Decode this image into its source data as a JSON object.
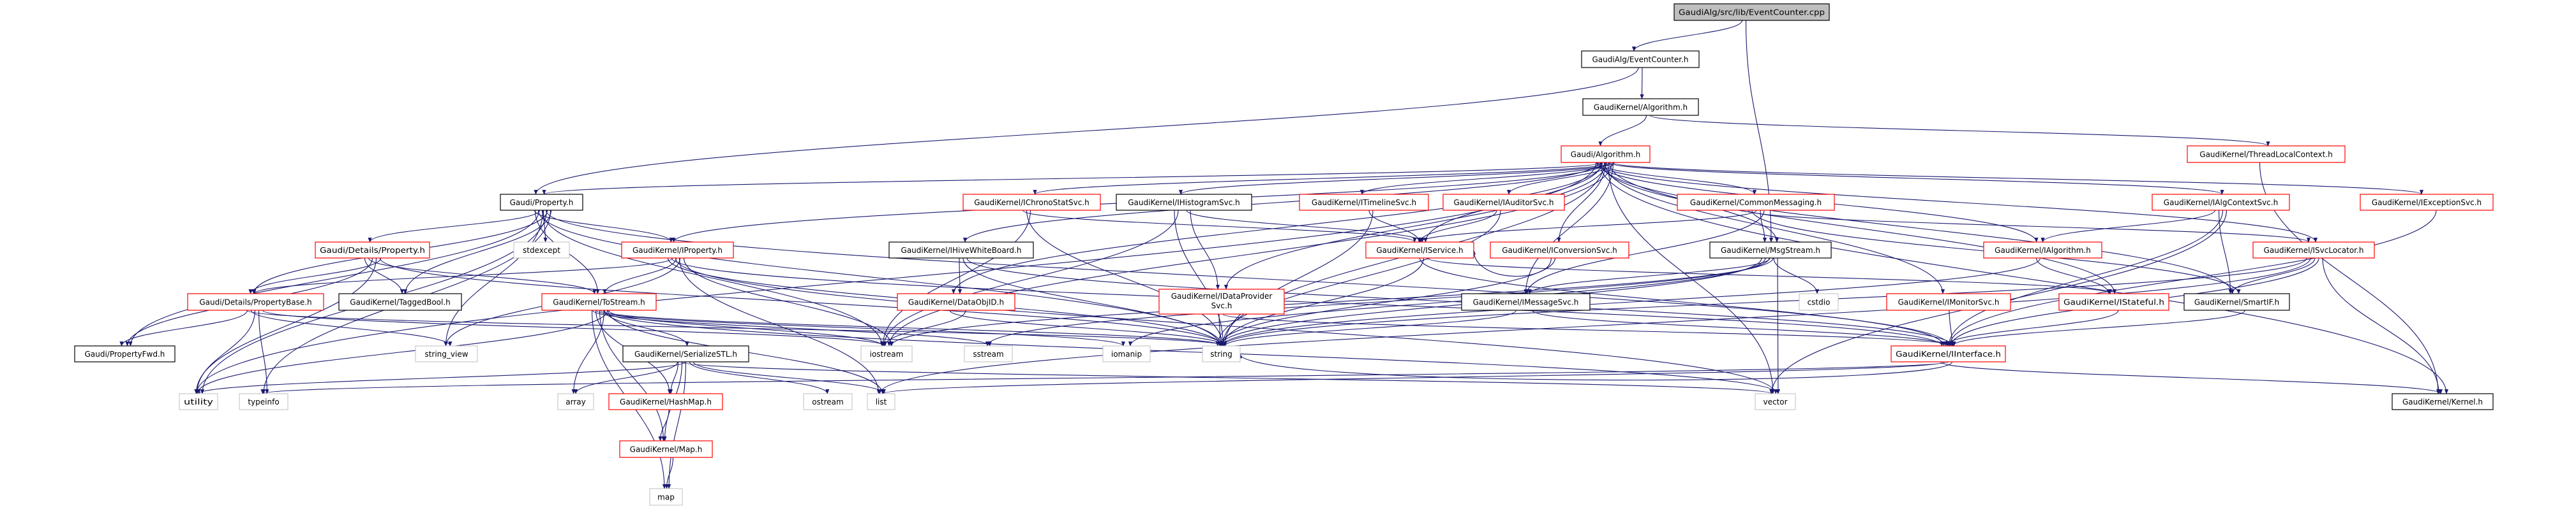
{
  "colors": {
    "edge": "#191970",
    "documented_border": "#000000",
    "undocumented_border": "#ff0000",
    "system_border": "#bfbfbf",
    "source_fill": "#bfbfbf",
    "node_fill": "#ffffff"
  },
  "nodes": [
    {
      "label": "GaudiAlg/src/lib/EventCounter.cpp",
      "kind": "source"
    },
    {
      "label": "GaudiAlg/EventCounter.h",
      "kind": "documented"
    },
    {
      "label": "GaudiKernel/Algorithm.h",
      "kind": "documented"
    },
    {
      "label": "Gaudi/Algorithm.h",
      "kind": "truncated"
    },
    {
      "label": "GaudiKernel/ThreadLocalContext.h",
      "kind": "truncated"
    },
    {
      "label": "Gaudi/Property.h",
      "kind": "documented"
    },
    {
      "label": "GaudiKernel/IChronoStatSvc.h",
      "kind": "truncated"
    },
    {
      "label": "GaudiKernel/IHistogramSvc.h",
      "kind": "documented"
    },
    {
      "label": "GaudiKernel/ITimelineSvc.h",
      "kind": "truncated"
    },
    {
      "label": "GaudiKernel/IAuditorSvc.h",
      "kind": "truncated"
    },
    {
      "label": "GaudiKernel/CommonMessaging.h",
      "kind": "truncated"
    },
    {
      "label": "GaudiKernel/IAlgContextSvc.h",
      "kind": "truncated"
    },
    {
      "label": "GaudiKernel/IExceptionSvc.h",
      "kind": "truncated"
    },
    {
      "label": "Gaudi/Details/Property.h",
      "kind": "truncated"
    },
    {
      "label": "stdexcept",
      "kind": "system"
    },
    {
      "label": "GaudiKernel/IProperty.h",
      "kind": "truncated"
    },
    {
      "label": "GaudiKernel/IHiveWhiteBoard.h",
      "kind": "documented"
    },
    {
      "label": "GaudiKernel/IService.h",
      "kind": "truncated"
    },
    {
      "label": "GaudiKernel/IConversionSvc.h",
      "kind": "truncated"
    },
    {
      "label": "GaudiKernel/MsgStream.h",
      "kind": "documented"
    },
    {
      "label": "GaudiKernel/IAlgorithm.h",
      "kind": "truncated"
    },
    {
      "label": "GaudiKernel/ISvcLocator.h",
      "kind": "truncated"
    },
    {
      "label": "Gaudi/Details/PropertyBase.h",
      "kind": "truncated"
    },
    {
      "label": "GaudiKernel/TaggedBool.h",
      "kind": "documented"
    },
    {
      "label": "GaudiKernel/ToStream.h",
      "kind": "truncated"
    },
    {
      "label": "GaudiKernel/DataObjID.h",
      "kind": "truncated"
    },
    {
      "label": "GaudiKernel/IDataProvider\nSvc.h",
      "kind": "truncated"
    },
    {
      "label": "GaudiKernel/IMessageSvc.h",
      "kind": "documented"
    },
    {
      "label": "cstdio",
      "kind": "system"
    },
    {
      "label": "GaudiKernel/IMonitorSvc.h",
      "kind": "truncated"
    },
    {
      "label": "GaudiKernel/IStateful.h",
      "kind": "truncated"
    },
    {
      "label": "GaudiKernel/SmartIF.h",
      "kind": "documented"
    },
    {
      "label": "Gaudi/PropertyFwd.h",
      "kind": "documented"
    },
    {
      "label": "string_view",
      "kind": "system"
    },
    {
      "label": "GaudiKernel/SerializeSTL.h",
      "kind": "documented"
    },
    {
      "label": "iostream",
      "kind": "system"
    },
    {
      "label": "sstream",
      "kind": "system"
    },
    {
      "label": "iomanip",
      "kind": "system"
    },
    {
      "label": "string",
      "kind": "system"
    },
    {
      "label": "GaudiKernel/IInterface.h",
      "kind": "truncated"
    },
    {
      "label": "utility",
      "kind": "system"
    },
    {
      "label": "typeinfo",
      "kind": "system"
    },
    {
      "label": "array",
      "kind": "system"
    },
    {
      "label": "GaudiKernel/HashMap.h",
      "kind": "truncated"
    },
    {
      "label": "ostream",
      "kind": "system"
    },
    {
      "label": "list",
      "kind": "system"
    },
    {
      "label": "vector",
      "kind": "system"
    },
    {
      "label": "GaudiKernel/Kernel.h",
      "kind": "documented"
    },
    {
      "label": "GaudiKernel/Map.h",
      "kind": "truncated"
    },
    {
      "label": "map",
      "kind": "system"
    }
  ],
  "edges": [
    [
      0,
      1
    ],
    [
      0,
      19
    ],
    [
      1,
      5
    ],
    [
      1,
      2
    ],
    [
      2,
      3
    ],
    [
      2,
      4
    ],
    [
      4,
      47
    ],
    [
      3,
      5
    ],
    [
      3,
      15
    ],
    [
      3,
      6
    ],
    [
      3,
      7
    ],
    [
      3,
      16
    ],
    [
      3,
      25
    ],
    [
      3,
      26
    ],
    [
      3,
      8
    ],
    [
      3,
      9
    ],
    [
      3,
      10
    ],
    [
      3,
      17
    ],
    [
      3,
      18
    ],
    [
      3,
      19
    ],
    [
      3,
      27
    ],
    [
      3,
      20
    ],
    [
      3,
      30
    ],
    [
      3,
      29
    ],
    [
      3,
      11
    ],
    [
      3,
      12
    ],
    [
      3,
      21
    ],
    [
      3,
      31
    ],
    [
      3,
      38
    ],
    [
      3,
      46
    ],
    [
      3,
      35
    ],
    [
      3,
      40
    ],
    [
      3,
      47
    ],
    [
      5,
      13
    ],
    [
      5,
      14
    ],
    [
      5,
      22
    ],
    [
      5,
      23
    ],
    [
      5,
      24
    ],
    [
      5,
      32
    ],
    [
      5,
      33
    ],
    [
      5,
      40
    ],
    [
      5,
      41
    ],
    [
      5,
      15
    ],
    [
      5,
      38
    ],
    [
      5,
      35
    ],
    [
      5,
      39
    ],
    [
      13,
      22
    ],
    [
      13,
      23
    ],
    [
      13,
      24
    ],
    [
      13,
      32
    ],
    [
      13,
      40
    ],
    [
      13,
      38
    ],
    [
      22,
      32
    ],
    [
      22,
      33
    ],
    [
      22,
      40
    ],
    [
      22,
      41
    ],
    [
      22,
      35
    ],
    [
      22,
      38
    ],
    [
      15,
      22
    ],
    [
      15,
      24
    ],
    [
      15,
      33
    ],
    [
      15,
      35
    ],
    [
      15,
      38
    ],
    [
      15,
      39
    ],
    [
      15,
      46
    ],
    [
      15,
      45
    ],
    [
      24,
      34
    ],
    [
      24,
      35
    ],
    [
      24,
      36
    ],
    [
      24,
      37
    ],
    [
      24,
      38
    ],
    [
      24,
      42
    ],
    [
      24,
      45
    ],
    [
      24,
      49
    ],
    [
      24,
      43
    ],
    [
      24,
      48
    ],
    [
      24,
      46
    ],
    [
      24,
      40
    ],
    [
      34,
      43
    ],
    [
      34,
      48
    ],
    [
      34,
      49
    ],
    [
      34,
      44
    ],
    [
      34,
      45
    ],
    [
      34,
      42
    ],
    [
      34,
      46
    ],
    [
      34,
      40
    ],
    [
      43,
      48
    ],
    [
      48,
      49
    ],
    [
      6,
      17
    ],
    [
      6,
      38
    ],
    [
      6,
      35
    ],
    [
      7,
      17
    ],
    [
      7,
      26
    ],
    [
      7,
      38
    ],
    [
      7,
      35
    ],
    [
      16,
      25
    ],
    [
      16,
      38
    ],
    [
      16,
      39
    ],
    [
      25,
      35
    ],
    [
      25,
      38
    ],
    [
      26,
      38
    ],
    [
      26,
      39
    ],
    [
      8,
      17
    ],
    [
      8,
      38
    ],
    [
      9,
      17
    ],
    [
      9,
      38
    ],
    [
      10,
      17
    ],
    [
      10,
      19
    ],
    [
      10,
      27
    ],
    [
      10,
      21
    ],
    [
      10,
      31
    ],
    [
      17,
      39
    ],
    [
      17,
      38
    ],
    [
      17,
      30
    ],
    [
      18,
      17
    ],
    [
      18,
      38
    ],
    [
      19,
      27
    ],
    [
      19,
      28
    ],
    [
      19,
      46
    ],
    [
      19,
      38
    ],
    [
      19,
      37
    ],
    [
      19,
      36
    ],
    [
      19,
      35
    ],
    [
      27,
      39
    ],
    [
      27,
      38
    ],
    [
      11,
      20
    ],
    [
      11,
      31
    ],
    [
      11,
      39
    ],
    [
      11,
      46
    ],
    [
      12,
      39
    ],
    [
      20,
      30
    ],
    [
      20,
      38
    ],
    [
      21,
      31
    ],
    [
      21,
      39
    ],
    [
      21,
      47
    ],
    [
      21,
      38
    ],
    [
      21,
      45
    ],
    [
      29,
      39
    ],
    [
      30,
      39
    ],
    [
      31,
      39
    ],
    [
      39,
      47
    ],
    [
      39,
      45
    ],
    [
      39,
      41
    ],
    [
      39,
      38
    ]
  ]
}
